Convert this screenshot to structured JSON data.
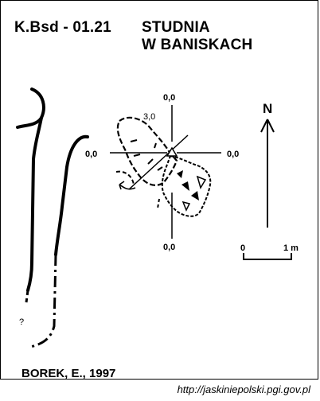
{
  "title": {
    "id": "K.Bsd - 01.21",
    "line1": "STUDNIA",
    "line2": "W BANISKACH"
  },
  "labels": {
    "top": "0,0",
    "left": "0,0",
    "right": "0,0",
    "bottom": "0,0",
    "depth": "3,0",
    "question": "?"
  },
  "north": "N",
  "scale": {
    "start": "0",
    "end": "1 m"
  },
  "author": "BOREK, E., 1997",
  "source": "http://jaskiniepolski.pgi.gov.pl"
}
